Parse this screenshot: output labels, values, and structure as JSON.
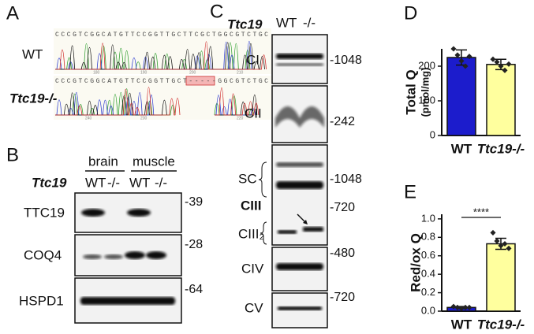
{
  "panel_labels": [
    "A",
    "B",
    "C",
    "D",
    "E"
  ],
  "panel_a": {
    "rows": [
      {
        "label": "WT",
        "sequence": "CCCGTCGGCATGTTCCGGTTGCTTCGCTGGCGTCTGC",
        "positions": [
          "180",
          "190",
          "200",
          "210"
        ]
      },
      {
        "label": "Ttc19-/-",
        "sequence": "CCCGTCGGCATGTTCCGGTTGCT-----GGCGTCTGC",
        "positions": [
          "240",
          "230",
          "220"
        ]
      }
    ]
  },
  "panel_b": {
    "gene": "Ttc19",
    "tissues": [
      "brain",
      "muscle"
    ],
    "genotypes": [
      "WT",
      "-/-",
      "WT",
      "-/-"
    ],
    "blots": [
      {
        "label": "TTC19",
        "marker": "-39"
      },
      {
        "label": "COQ4",
        "marker": "-28"
      },
      {
        "label": "HSPD1",
        "marker": "-64"
      }
    ]
  },
  "panel_c": {
    "gene": "Ttc19",
    "genotypes": [
      "WT",
      "-/-"
    ],
    "labels": [
      "CI",
      "CII",
      "SC",
      "CIII",
      "CIII₂",
      "CIV",
      "CV"
    ],
    "markers": [
      "-1048",
      "-242",
      "-1048",
      "-720",
      "-480",
      "-720"
    ]
  },
  "chart_data": [
    {
      "type": "bar",
      "categories": [
        "WT",
        "Ttc19-/-"
      ],
      "values": [
        225,
        205
      ],
      "errors": [
        22,
        15
      ],
      "points": [
        [
          250,
          232,
          215,
          200,
          228
        ],
        [
          220,
          212,
          200,
          188,
          206
        ]
      ],
      "colors": [
        "#1c1ccc",
        "#ffff9e"
      ],
      "ylabel": "Total Q",
      "ylabel_unit": "(pmol/mg)",
      "ylim": [
        0,
        250
      ],
      "yticks": [
        0,
        100,
        200
      ]
    },
    {
      "type": "bar",
      "categories": [
        "WT",
        "Ttc19-/-"
      ],
      "values": [
        0.04,
        0.73
      ],
      "errors": [
        0.01,
        0.06
      ],
      "points": [
        [
          0.05,
          0.04,
          0.03,
          0.04,
          0.04
        ],
        [
          0.85,
          0.76,
          0.71,
          0.73,
          0.68
        ]
      ],
      "colors": [
        "#1c1ccc",
        "#ffff9e"
      ],
      "ylabel": "Red/ox Q",
      "annotation": "****",
      "ylim": [
        0,
        1.05
      ],
      "yticks": [
        {
          "value": 0,
          "label": "0.0"
        },
        0.2,
        0.4,
        0.6,
        0.8,
        {
          "value": 1,
          "label": "1.0"
        }
      ]
    }
  ]
}
